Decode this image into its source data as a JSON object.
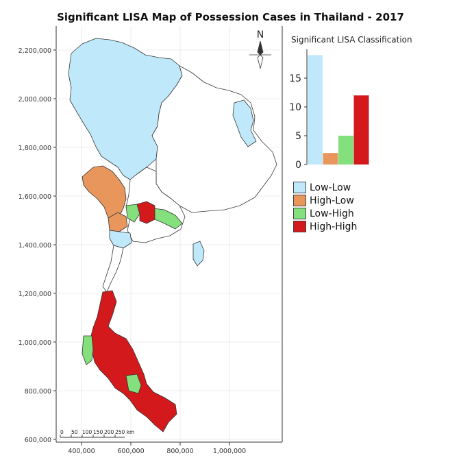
{
  "map": {
    "title": "Significant LISA Map of Possession Cases in Thailand - 2017",
    "north_label": "N",
    "y_ticks": [
      "2,200,000",
      "2,000,000",
      "1,800,000",
      "1,600,000",
      "1,400,000",
      "1,200,000",
      "1,000,000",
      "800,000",
      "600,000"
    ],
    "x_ticks": [
      "400,000",
      "600,000",
      "800,000",
      "1,000,000"
    ],
    "scale_bar": {
      "labels": [
        "0",
        "50",
        "100",
        "150",
        "200",
        "250 km"
      ]
    },
    "colors": {
      "low_low": "#bfe9fb",
      "high_low": "#e8965c",
      "low_high": "#84e07d",
      "high_high": "#d3191c",
      "nonsignificant": "#ffffff"
    }
  },
  "chart_data": {
    "type": "bar",
    "title": "Significant LISA Classification",
    "categories": [
      "Low-Low",
      "High-Low",
      "Low-High",
      "High-High"
    ],
    "values": [
      19,
      2,
      5,
      12
    ],
    "colors": [
      "#bfe9fb",
      "#e8965c",
      "#84e07d",
      "#d3191c"
    ],
    "ylim": [
      0,
      20
    ],
    "y_ticks": [
      "0",
      "5",
      "10",
      "15"
    ]
  },
  "legend": {
    "items": [
      {
        "label": "Low-Low",
        "color": "#bfe9fb"
      },
      {
        "label": "High-Low",
        "color": "#e8965c"
      },
      {
        "label": "Low-High",
        "color": "#84e07d"
      },
      {
        "label": "High-High",
        "color": "#d3191c"
      }
    ]
  }
}
